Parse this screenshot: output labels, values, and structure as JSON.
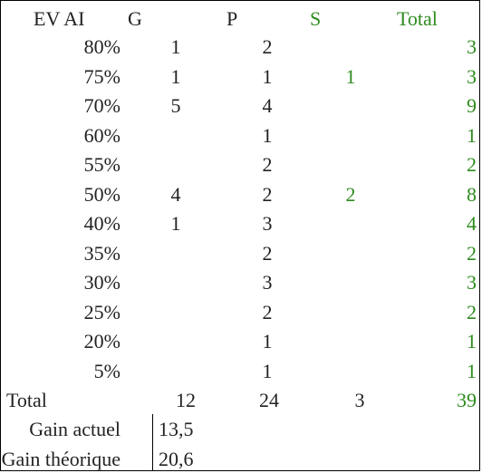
{
  "header": {
    "ev_ai": "EV AI",
    "g": "G",
    "p": "P",
    "s": "S",
    "total": "Total"
  },
  "rows": [
    {
      "label": "80%",
      "g": "1",
      "p": "2",
      "s": "",
      "total": "3"
    },
    {
      "label": "75%",
      "g": "1",
      "p": "1",
      "s": "1",
      "total": "3"
    },
    {
      "label": "70%",
      "g": "5",
      "p": "4",
      "s": "",
      "total": "9"
    },
    {
      "label": "60%",
      "g": "",
      "p": "1",
      "s": "",
      "total": "1"
    },
    {
      "label": "55%",
      "g": "",
      "p": "2",
      "s": "",
      "total": "2"
    },
    {
      "label": "50%",
      "g": "4",
      "p": "2",
      "s": "2",
      "total": "8"
    },
    {
      "label": "40%",
      "g": "1",
      "p": "3",
      "s": "",
      "total": "4"
    },
    {
      "label": "35%",
      "g": "",
      "p": "2",
      "s": "",
      "total": "2"
    },
    {
      "label": "30%",
      "g": "",
      "p": "3",
      "s": "",
      "total": "3"
    },
    {
      "label": "25%",
      "g": "",
      "p": "2",
      "s": "",
      "total": "2"
    },
    {
      "label": "20%",
      "g": "",
      "p": "1",
      "s": "",
      "total": "1"
    },
    {
      "label": "5%",
      "g": "",
      "p": "1",
      "s": "",
      "total": "1"
    }
  ],
  "totals": {
    "label": "Total",
    "g": "12",
    "p": "24",
    "s": "3",
    "total": "39"
  },
  "gain_actuel": {
    "label": "Gain actuel",
    "value": "13,5"
  },
  "gain_theorique": {
    "label": "Gain théorique",
    "value": "20,6"
  },
  "colors": {
    "accent_green": "#2e8b1e",
    "text": "#222222"
  }
}
